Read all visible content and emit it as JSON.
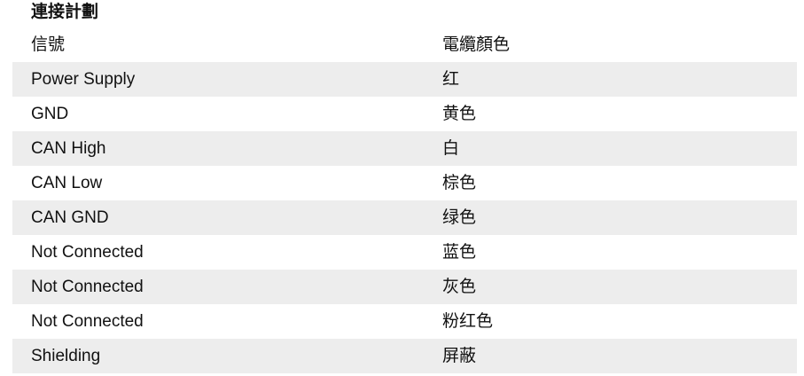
{
  "title": "連接計劃",
  "table": {
    "headers": [
      "信號",
      "電纜顏色"
    ],
    "rows": [
      [
        "Power Supply",
        "红"
      ],
      [
        "GND",
        "黄色"
      ],
      [
        "CAN High",
        "白"
      ],
      [
        "CAN Low",
        "棕色"
      ],
      [
        "CAN GND",
        "绿色"
      ],
      [
        "Not Connected",
        "蓝色"
      ],
      [
        "Not Connected",
        "灰色"
      ],
      [
        "Not Connected",
        "粉红色"
      ],
      [
        "Shielding",
        "屏蔽"
      ]
    ],
    "stripe_color": "#ededed"
  }
}
